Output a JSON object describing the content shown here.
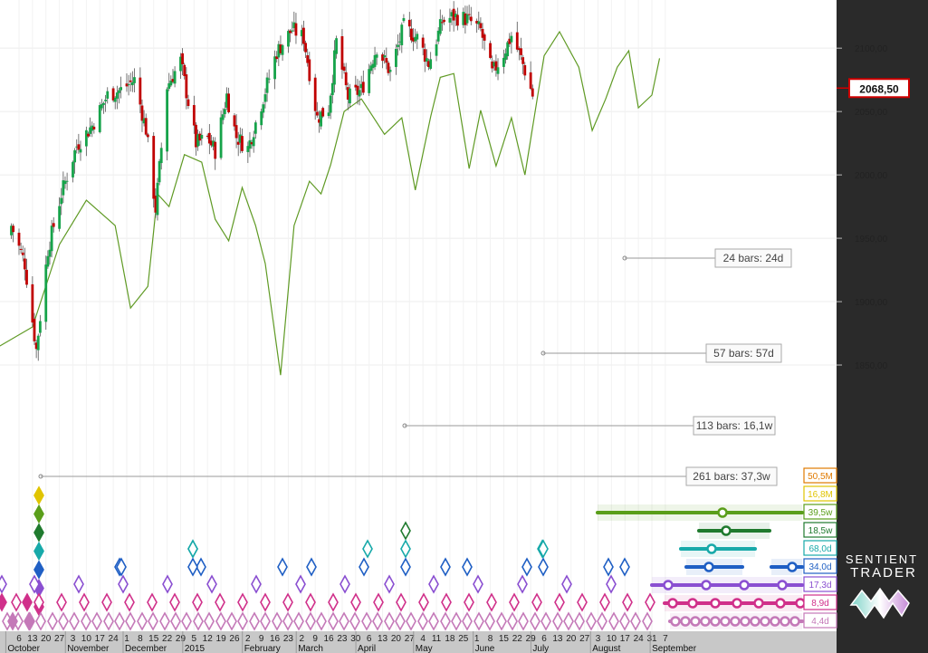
{
  "colors": {
    "up_candle": "#16a34a",
    "down_candle": "#c00000",
    "composite_line": "#5f9a24",
    "price_box_border": "#d00000",
    "axis_panel": "#2a2a2a",
    "bottom_axis": "#c8c8c8"
  },
  "price_axis_labels": [
    "2100,00",
    "2050,00",
    "2000,00",
    "1950,00",
    "1900,00",
    "1850,00"
  ],
  "current_price": "2068,50",
  "time_axis": {
    "days": [
      "6",
      "13",
      "20",
      "27",
      "3",
      "10",
      "17",
      "24",
      "1",
      "8",
      "15",
      "22",
      "29",
      "5",
      "12",
      "19",
      "26",
      "2",
      "9",
      "16",
      "23",
      "2",
      "9",
      "16",
      "23",
      "30",
      "6",
      "13",
      "20",
      "27",
      "4",
      "11",
      "18",
      "25",
      "1",
      "8",
      "15",
      "22",
      "29",
      "6",
      "13",
      "20",
      "27",
      "3",
      "10",
      "17",
      "24",
      "31",
      "7"
    ],
    "months": [
      "October",
      "November",
      "December",
      "2015",
      "February",
      "March",
      "April",
      "May",
      "June",
      "July",
      "August",
      "September"
    ]
  },
  "cycle_annotations": [
    "24 bars: 24d",
    "57 bars: 57d",
    "113 bars: 16,1w",
    "261 bars: 37,3w"
  ],
  "cycle_legend": [
    {
      "label": "50,5M",
      "color": "#e07a00"
    },
    {
      "label": "16,8M",
      "color": "#e0c400"
    },
    {
      "label": "39,5w",
      "color": "#5a9e1a"
    },
    {
      "label": "18,5w",
      "color": "#1f7a2e"
    },
    {
      "label": "68,0d",
      "color": "#17a9a9"
    },
    {
      "label": "34,0d",
      "color": "#1f5fc4"
    },
    {
      "label": "17,3d",
      "color": "#8a4fd1"
    },
    {
      "label": "8,9d",
      "color": "#d0308a"
    },
    {
      "label": "4,4d",
      "color": "#c479b8"
    }
  ],
  "logo": {
    "line1": "SENTIENT",
    "line2": "TRADER"
  },
  "chart_data": {
    "type": "line",
    "y_axis_ticks": [
      1850,
      1900,
      1950,
      2000,
      2050,
      2100
    ],
    "ylim": [
      1805,
      2133
    ],
    "current_price": 2068.5,
    "series": [
      {
        "name": "",
        "kind": "candlestick-close",
        "x": [
          "2014-10-02",
          "2014-10-09",
          "2014-10-15",
          "2014-10-21",
          "2014-10-28",
          "2014-11-05",
          "2014-11-13",
          "2014-11-21",
          "2014-11-28",
          "2014-12-05",
          "2014-12-11",
          "2014-12-16",
          "2014-12-22",
          "2014-12-29",
          "2015-01-06",
          "2015-01-12",
          "2015-01-16",
          "2015-01-22",
          "2015-01-27",
          "2015-02-02",
          "2015-02-09",
          "2015-02-17",
          "2015-02-25",
          "2015-03-03",
          "2015-03-10",
          "2015-03-16",
          "2015-03-20",
          "2015-03-26",
          "2015-04-02",
          "2015-04-10",
          "2015-04-17",
          "2015-04-24",
          "2015-05-01",
          "2015-05-07",
          "2015-05-14",
          "2015-05-20",
          "2015-05-27",
          "2015-06-03",
          "2015-06-09",
          "2015-06-15",
          "2015-06-19",
          "2015-06-24",
          "2015-06-30",
          "2015-07-01"
        ],
        "y": [
          1960,
          1930,
          1862,
          1941,
          1985,
          2023,
          2039,
          2063,
          2067,
          2075,
          2036,
          1973,
          2070,
          2090,
          2025,
          2029,
          2019,
          2063,
          2030,
          2021,
          2056,
          2097,
          2115,
          2108,
          2045,
          2053,
          2105,
          2061,
          2067,
          2101,
          2081,
          2117,
          2108,
          2088,
          2121,
          2125,
          2123,
          2114,
          2080,
          2096,
          2110,
          2092,
          2063,
          2069
        ]
      },
      {
        "name": "",
        "kind": "composite-cycle-line",
        "x": [
          "2014-09-26",
          "2014-10-13",
          "2014-10-27",
          "2014-11-10",
          "2014-11-25",
          "2014-12-03",
          "2014-12-12",
          "2014-12-17",
          "2014-12-23",
          "2014-12-31",
          "2015-01-09",
          "2015-01-16",
          "2015-01-23",
          "2015-01-30",
          "2015-02-06",
          "2015-02-11",
          "2015-02-19",
          "2015-02-26",
          "2015-03-06",
          "2015-03-12",
          "2015-03-17",
          "2015-03-24",
          "2015-04-02",
          "2015-04-14",
          "2015-04-23",
          "2015-04-30",
          "2015-05-08",
          "2015-05-13",
          "2015-05-20",
          "2015-05-28",
          "2015-06-03",
          "2015-06-11",
          "2015-06-19",
          "2015-06-26",
          "2015-07-06",
          "2015-07-14",
          "2015-07-24",
          "2015-07-31",
          "2015-08-07",
          "2015-08-13",
          "2015-08-19",
          "2015-08-24",
          "2015-08-31",
          "2015-09-04"
        ],
        "y": [
          1865,
          1880,
          1945,
          1980,
          1960,
          1895,
          1912,
          1985,
          1975,
          2016,
          2010,
          1965,
          1948,
          1990,
          1960,
          1930,
          1842,
          1960,
          1995,
          1985,
          2008,
          2050,
          2060,
          2032,
          2045,
          1988,
          2046,
          2077,
          2080,
          2005,
          2051,
          2007,
          2045,
          2000,
          2094,
          2113,
          2085,
          2035,
          2060,
          2085,
          2098,
          2053,
          2063,
          2092
        ]
      }
    ],
    "cycle_annotations": [
      {
        "label": "24 bars: 24d",
        "bars": 24,
        "length": "24d"
      },
      {
        "label": "57 bars: 57d",
        "bars": 57,
        "length": "57d"
      },
      {
        "label": "113 bars: 16,1w",
        "bars": 113,
        "length": "16,1w"
      },
      {
        "label": "261 bars: 37,3w",
        "bars": 261,
        "length": "37,3w"
      }
    ],
    "cycles": [
      {
        "label": "50,5M",
        "color": "#e07a00"
      },
      {
        "label": "16,8M",
        "color": "#e0c400"
      },
      {
        "label": "39,5w",
        "color": "#5a9e1a"
      },
      {
        "label": "18,5w",
        "color": "#1f7a2e"
      },
      {
        "label": "68,0d",
        "color": "#17a9a9"
      },
      {
        "label": "34,0d",
        "color": "#1f5fc4"
      },
      {
        "label": "17,3d",
        "color": "#8a4fd1"
      },
      {
        "label": "8,9d",
        "color": "#d0308a"
      },
      {
        "label": "4,4d",
        "color": "#c479b8"
      }
    ],
    "grid": true,
    "legend": "bottom-right"
  }
}
